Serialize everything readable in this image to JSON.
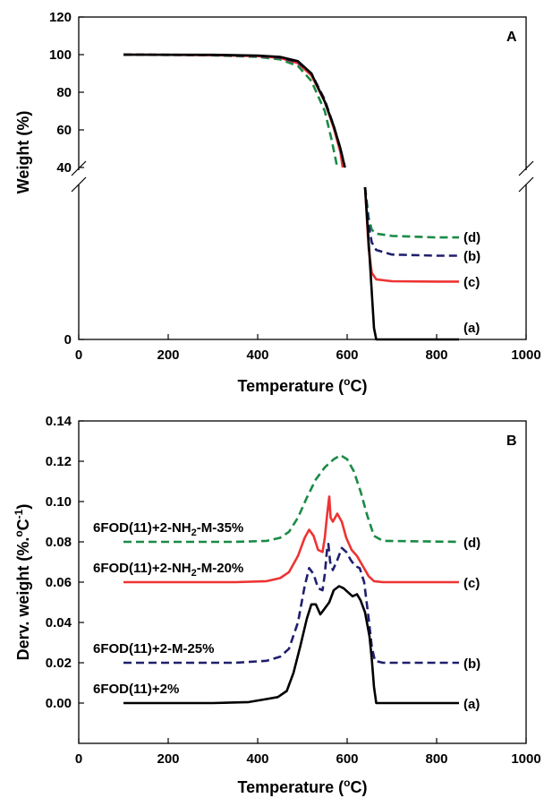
{
  "colors": {
    "a": "#000000",
    "b": "#1f1f6e",
    "c": "#ee3333",
    "d": "#1a8a45"
  },
  "chart_data": [
    {
      "panel_label": "A",
      "type": "line",
      "xlabel": "Temperature (",
      "xlabel_sup": "o",
      "xlabel_end": "C)",
      "ylabel": "Weight (%)",
      "xlim": [
        0,
        1000
      ],
      "x_ticks": [
        "0",
        "200",
        "400",
        "600",
        "800",
        "1000"
      ],
      "y_ticks_upper": [
        "40",
        "60",
        "80",
        "100",
        "120"
      ],
      "y_ticks_lower": [
        "0"
      ],
      "axis_break": true,
      "series": [
        {
          "key": "a",
          "name": "(a)",
          "style": "solid",
          "upper": [
            [
              100,
              100
            ],
            [
              300,
              99.9
            ],
            [
              400,
              99.5
            ],
            [
              450,
              98.8
            ],
            [
              490,
              96.5
            ],
            [
              520,
              90
            ],
            [
              550,
              75
            ],
            [
              570,
              62
            ],
            [
              585,
              50
            ],
            [
              595,
              40
            ]
          ],
          "lower": [
            [
              640,
              40
            ],
            [
              650,
              22
            ],
            [
              660,
              3
            ],
            [
              665,
              0
            ],
            [
              700,
              0
            ],
            [
              850,
              0
            ]
          ]
        },
        {
          "key": "b",
          "name": "(b)",
          "style": "dashed",
          "upper": [
            [
              100,
              100
            ],
            [
              300,
              99.8
            ],
            [
              400,
              99.3
            ],
            [
              450,
              98.5
            ],
            [
              490,
              96
            ],
            [
              520,
              90
            ],
            [
              550,
              76
            ],
            [
              570,
              62
            ],
            [
              585,
              50
            ],
            [
              595,
              40
            ]
          ],
          "lower": [
            [
              640,
              40
            ],
            [
              648,
              30
            ],
            [
              655,
              25.5
            ],
            [
              665,
              23.5
            ],
            [
              700,
              22.3
            ],
            [
              800,
              22
            ],
            [
              850,
              22
            ]
          ]
        },
        {
          "key": "c",
          "name": "(c)",
          "style": "solid",
          "upper": [
            [
              100,
              100
            ],
            [
              300,
              99.7
            ],
            [
              400,
              99.2
            ],
            [
              450,
              98.3
            ],
            [
              490,
              95.5
            ],
            [
              520,
              89
            ],
            [
              550,
              75
            ],
            [
              570,
              61
            ],
            [
              585,
              48
            ],
            [
              590,
              40
            ]
          ],
          "lower": [
            [
              640,
              40
            ],
            [
              648,
              24
            ],
            [
              655,
              17.5
            ],
            [
              665,
              15.8
            ],
            [
              700,
              15.3
            ],
            [
              800,
              15.2
            ],
            [
              850,
              15.2
            ]
          ]
        },
        {
          "key": "d",
          "name": "(d)",
          "style": "dashed",
          "upper": [
            [
              100,
              100
            ],
            [
              300,
              99.6
            ],
            [
              400,
              98.8
            ],
            [
              450,
              97.5
            ],
            [
              490,
              94
            ],
            [
              520,
              86
            ],
            [
              550,
              70
            ],
            [
              565,
              55
            ],
            [
              578,
              40
            ]
          ],
          "lower": [
            [
              640,
              40
            ],
            [
              648,
              32
            ],
            [
              655,
              28.8
            ],
            [
              665,
              27.8
            ],
            [
              700,
              27.2
            ],
            [
              800,
              26.8
            ],
            [
              850,
              26.8
            ]
          ]
        }
      ]
    },
    {
      "panel_label": "B",
      "type": "line",
      "xlabel": "Temperature (",
      "xlabel_sup": "o",
      "xlabel_end": "C)",
      "ylabel": "Derv. weight (%.",
      "ylabel_sup_o": "o",
      "ylabel_mid": "C",
      "ylabel_sup": "-1",
      "ylabel_end": ")",
      "xlim": [
        0,
        1000
      ],
      "ylim": [
        -0.02,
        0.14
      ],
      "x_ticks": [
        "0",
        "200",
        "400",
        "600",
        "800",
        "1000"
      ],
      "y_ticks": [
        "0.00",
        "0.02",
        "0.04",
        "0.06",
        "0.08",
        "0.10",
        "0.12",
        "0.14"
      ],
      "series": [
        {
          "key": "d",
          "name": "(d)",
          "style": "dashed",
          "label": "6FOD(11)+2-NH",
          "label_sub": "2",
          "label_end": "-M-35%",
          "points": [
            [
              100,
              0.08
            ],
            [
              350,
              0.08
            ],
            [
              420,
              0.0805
            ],
            [
              450,
              0.082
            ],
            [
              470,
              0.085
            ],
            [
              490,
              0.092
            ],
            [
              510,
              0.102
            ],
            [
              530,
              0.111
            ],
            [
              550,
              0.117
            ],
            [
              570,
              0.121
            ],
            [
              585,
              0.123
            ],
            [
              600,
              0.121
            ],
            [
              615,
              0.115
            ],
            [
              630,
              0.105
            ],
            [
              645,
              0.093
            ],
            [
              660,
              0.083
            ],
            [
              680,
              0.0805
            ],
            [
              850,
              0.08
            ]
          ]
        },
        {
          "key": "c",
          "name": "(c)",
          "style": "solid",
          "label": "6FOD(11)+2-NH",
          "label_sub": "2",
          "label_end": "-M-20%",
          "points": [
            [
              100,
              0.06
            ],
            [
              350,
              0.06
            ],
            [
              420,
              0.0605
            ],
            [
              450,
              0.062
            ],
            [
              470,
              0.065
            ],
            [
              490,
              0.073
            ],
            [
              505,
              0.082
            ],
            [
              515,
              0.086
            ],
            [
              525,
              0.083
            ],
            [
              535,
              0.076
            ],
            [
              545,
              0.075
            ],
            [
              550,
              0.082
            ],
            [
              555,
              0.093
            ],
            [
              560,
              0.1025
            ],
            [
              563,
              0.092
            ],
            [
              568,
              0.09
            ],
            [
              578,
              0.094
            ],
            [
              588,
              0.09
            ],
            [
              598,
              0.082
            ],
            [
              610,
              0.076
            ],
            [
              622,
              0.073
            ],
            [
              635,
              0.068
            ],
            [
              648,
              0.063
            ],
            [
              660,
              0.0605
            ],
            [
              680,
              0.06
            ],
            [
              850,
              0.06
            ]
          ]
        },
        {
          "key": "b",
          "name": "(b)",
          "style": "dashed",
          "label": "6FOD(11)+2-M-25%",
          "points": [
            [
              100,
              0.02
            ],
            [
              350,
              0.02
            ],
            [
              420,
              0.021
            ],
            [
              450,
              0.023
            ],
            [
              470,
              0.027
            ],
            [
              490,
              0.04
            ],
            [
              505,
              0.058
            ],
            [
              515,
              0.067
            ],
            [
              525,
              0.064
            ],
            [
              535,
              0.057
            ],
            [
              545,
              0.056
            ],
            [
              550,
              0.064
            ],
            [
              555,
              0.076
            ],
            [
              558,
              0.079
            ],
            [
              562,
              0.07
            ],
            [
              568,
              0.066
            ],
            [
              578,
              0.071
            ],
            [
              588,
              0.077
            ],
            [
              598,
              0.075
            ],
            [
              608,
              0.071
            ],
            [
              618,
              0.068
            ],
            [
              628,
              0.067
            ],
            [
              638,
              0.06
            ],
            [
              648,
              0.042
            ],
            [
              655,
              0.028
            ],
            [
              662,
              0.021
            ],
            [
              680,
              0.02
            ],
            [
              850,
              0.02
            ]
          ]
        },
        {
          "key": "a",
          "name": "(a)",
          "style": "solid",
          "label": "6FOD(11)+2%",
          "points": [
            [
              100,
              0
            ],
            [
              300,
              0
            ],
            [
              380,
              0.0005
            ],
            [
              420,
              0.002
            ],
            [
              445,
              0.003
            ],
            [
              465,
              0.006
            ],
            [
              480,
              0.015
            ],
            [
              495,
              0.028
            ],
            [
              510,
              0.042
            ],
            [
              520,
              0.049
            ],
            [
              530,
              0.049
            ],
            [
              540,
              0.044
            ],
            [
              550,
              0.047
            ],
            [
              560,
              0.05
            ],
            [
              570,
              0.056
            ],
            [
              582,
              0.058
            ],
            [
              592,
              0.057
            ],
            [
              602,
              0.055
            ],
            [
              612,
              0.053
            ],
            [
              622,
              0.054
            ],
            [
              630,
              0.051
            ],
            [
              640,
              0.045
            ],
            [
              650,
              0.033
            ],
            [
              655,
              0.022
            ],
            [
              660,
              0.008
            ],
            [
              665,
              0
            ],
            [
              700,
              0
            ],
            [
              850,
              0
            ]
          ]
        }
      ]
    }
  ]
}
